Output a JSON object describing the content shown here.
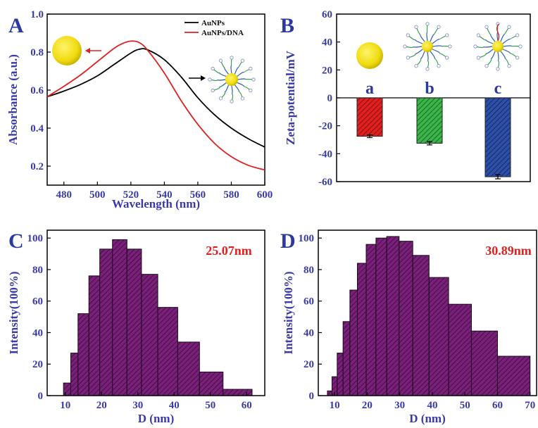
{
  "chart_data": [
    {
      "panel": "A",
      "type": "line",
      "xlabel": "Wavelength (nm)",
      "ylabel": "Absorbance (a.u.)",
      "xlim": [
        470,
        600
      ],
      "ylim": [
        0.1,
        1.0
      ],
      "xticks": [
        480,
        500,
        520,
        540,
        560,
        580,
        600
      ],
      "yticks": [
        0.2,
        0.4,
        0.6,
        0.8,
        1.0
      ],
      "legend_position": "top-right",
      "series": [
        {
          "name": "AuNPs",
          "color": "#000000",
          "x": [
            470,
            480,
            490,
            500,
            510,
            520,
            525,
            530,
            540,
            550,
            560,
            570,
            580,
            590,
            600
          ],
          "y": [
            0.565,
            0.595,
            0.63,
            0.675,
            0.735,
            0.795,
            0.815,
            0.812,
            0.76,
            0.67,
            0.56,
            0.47,
            0.4,
            0.345,
            0.3
          ]
        },
        {
          "name": "AuNPs/DNA",
          "color": "#e02020",
          "x": [
            470,
            480,
            490,
            500,
            510,
            515,
            520,
            525,
            530,
            540,
            550,
            560,
            570,
            580,
            590,
            600
          ],
          "y": [
            0.565,
            0.62,
            0.68,
            0.75,
            0.82,
            0.845,
            0.858,
            0.85,
            0.81,
            0.69,
            0.545,
            0.42,
            0.32,
            0.25,
            0.205,
            0.18
          ]
        }
      ]
    },
    {
      "panel": "B",
      "type": "bar",
      "ylabel": "Zeta-potential/mV",
      "ylim": [
        -60,
        60
      ],
      "yticks": [
        -60,
        -40,
        -20,
        0,
        20,
        40,
        60
      ],
      "categories": [
        "a",
        "b",
        "c"
      ],
      "values": [
        -27.5,
        -32.5,
        -56.5
      ],
      "errors": [
        1.0,
        1.2,
        1.5
      ],
      "colors": [
        "#e02020",
        "#39b54a",
        "#2e4fa8"
      ]
    },
    {
      "panel": "C",
      "type": "bar",
      "xlabel": "D (nm)",
      "ylabel": "Intensity(100%)",
      "xlim": [
        5,
        65
      ],
      "ylim": [
        0,
        105
      ],
      "xticks": [
        10,
        20,
        30,
        40,
        50,
        60
      ],
      "yticks": [
        0,
        20,
        40,
        60,
        80,
        100
      ],
      "annotation": "25.07nm",
      "color": "#7a1f7a",
      "bars": [
        {
          "x0": 9.5,
          "x1": 11.5,
          "value": 8
        },
        {
          "x0": 11.5,
          "x1": 13.5,
          "value": 27
        },
        {
          "x0": 13.5,
          "x1": 16.5,
          "value": 52
        },
        {
          "x0": 16.5,
          "x1": 19.5,
          "value": 76
        },
        {
          "x0": 19.5,
          "x1": 23,
          "value": 93
        },
        {
          "x0": 23,
          "x1": 27,
          "value": 99
        },
        {
          "x0": 27,
          "x1": 31,
          "value": 93
        },
        {
          "x0": 31,
          "x1": 35.5,
          "value": 77
        },
        {
          "x0": 35.5,
          "x1": 41,
          "value": 56
        },
        {
          "x0": 41,
          "x1": 47,
          "value": 34
        },
        {
          "x0": 47,
          "x1": 53.5,
          "value": 15
        },
        {
          "x0": 53.5,
          "x1": 61.5,
          "value": 4
        }
      ]
    },
    {
      "panel": "D",
      "type": "bar",
      "xlabel": "D (nm)",
      "ylabel": "Intensity(100%)",
      "xlim": [
        5,
        72
      ],
      "ylim": [
        0,
        105
      ],
      "xticks": [
        10,
        20,
        30,
        40,
        50,
        60,
        70
      ],
      "yticks": [
        0,
        20,
        40,
        60,
        80,
        100
      ],
      "annotation": "30.89nm",
      "color": "#7a1f7a",
      "bars": [
        {
          "x0": 7.8,
          "x1": 9.2,
          "value": 3
        },
        {
          "x0": 9.2,
          "x1": 10.8,
          "value": 12
        },
        {
          "x0": 10.8,
          "x1": 12.6,
          "value": 27
        },
        {
          "x0": 12.6,
          "x1": 14.7,
          "value": 47
        },
        {
          "x0": 14.7,
          "x1": 17,
          "value": 67
        },
        {
          "x0": 17,
          "x1": 19.7,
          "value": 84
        },
        {
          "x0": 19.7,
          "x1": 22.7,
          "value": 96
        },
        {
          "x0": 22.7,
          "x1": 26,
          "value": 100
        },
        {
          "x0": 26,
          "x1": 29.8,
          "value": 101
        },
        {
          "x0": 29.8,
          "x1": 34,
          "value": 98
        },
        {
          "x0": 34,
          "x1": 39,
          "value": 89
        },
        {
          "x0": 39,
          "x1": 45,
          "value": 75
        },
        {
          "x0": 45,
          "x1": 52,
          "value": 58
        },
        {
          "x0": 52,
          "x1": 60,
          "value": 41
        },
        {
          "x0": 60,
          "x1": 70,
          "value": 25
        }
      ]
    }
  ]
}
